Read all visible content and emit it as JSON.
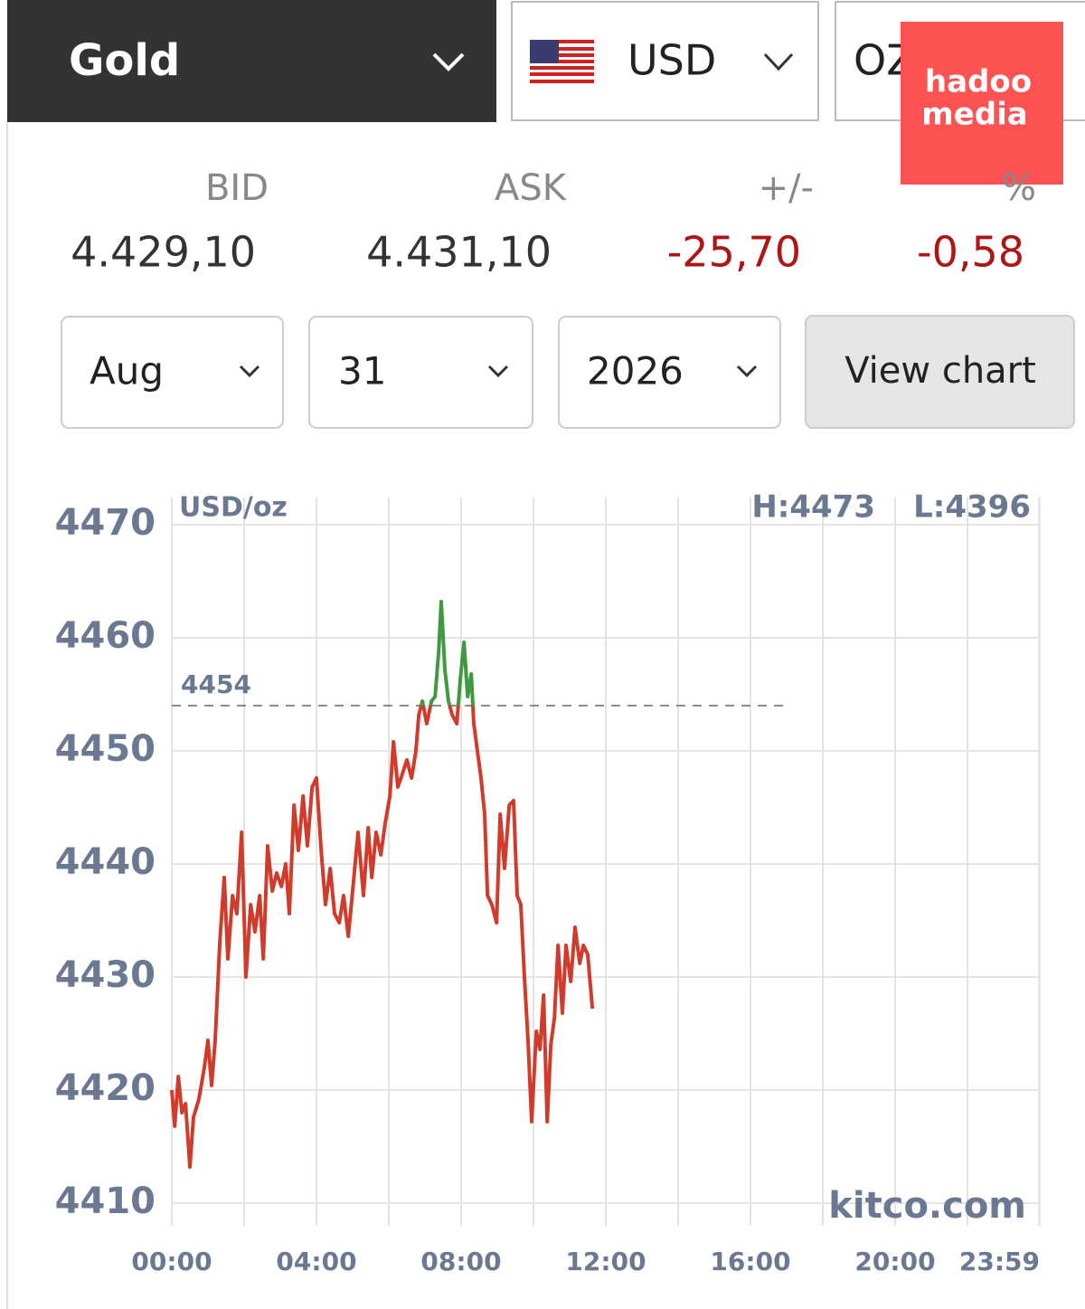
{
  "controls": {
    "metal": "Gold",
    "currency": "USD",
    "unit": "OZ",
    "month": "Aug",
    "day": "31",
    "year": "2026",
    "button": "View chart"
  },
  "quote": {
    "headers": [
      "BID",
      "ASK",
      "+/-",
      "%"
    ],
    "values": [
      "4.429,10",
      "4.431,10",
      "-25,70",
      "-0,58"
    ]
  },
  "watermark": {
    "line1": "hadoo",
    "line2": "media"
  },
  "chart_data": {
    "type": "line",
    "unit_label": "USD/oz",
    "high_label": "H:4473",
    "low_label": "L:4396",
    "source": "kitco.com",
    "reference_line": {
      "value": 4454
    },
    "xlim": [
      0,
      24
    ],
    "xticks": [
      {
        "value": 0,
        "label": "00:00"
      },
      {
        "value": 4,
        "label": "04:00"
      },
      {
        "value": 8,
        "label": "08:00"
      },
      {
        "value": 12,
        "label": "12:00"
      },
      {
        "value": 16,
        "label": "16:00"
      },
      {
        "value": 20,
        "label": "20:00"
      },
      {
        "value": 23.98,
        "label": "23:59"
      }
    ],
    "x_minor_grid": [
      2,
      6,
      10,
      14,
      18,
      22,
      24
    ],
    "ylim": [
      4408,
      4472.4
    ],
    "yticks": [
      4410,
      4420,
      4430,
      4440,
      4450,
      4460,
      4470
    ],
    "grid": true,
    "x": [
      0,
      0.08,
      0.18,
      0.28,
      0.38,
      0.5,
      0.6,
      0.75,
      0.9,
      1.0,
      1.1,
      1.2,
      1.33,
      1.45,
      1.55,
      1.68,
      1.8,
      1.93,
      2.05,
      2.18,
      2.3,
      2.43,
      2.53,
      2.65,
      2.78,
      2.9,
      3.03,
      3.15,
      3.25,
      3.38,
      3.5,
      3.63,
      3.75,
      3.88,
      4.0,
      4.13,
      4.25,
      4.38,
      4.5,
      4.63,
      4.75,
      4.88,
      5.0,
      5.15,
      5.3,
      5.43,
      5.53,
      5.65,
      5.78,
      5.9,
      6.03,
      6.13,
      6.25,
      6.38,
      6.5,
      6.63,
      6.75,
      6.83,
      6.93,
      7.05,
      7.18,
      7.28,
      7.38,
      7.45,
      7.55,
      7.65,
      7.75,
      7.88,
      7.98,
      8.08,
      8.18,
      8.28,
      8.35,
      8.45,
      8.55,
      8.65,
      8.73,
      8.85,
      8.98,
      9.08,
      9.2,
      9.33,
      9.45,
      9.55,
      9.65,
      9.75,
      9.85,
      9.95,
      10.08,
      10.18,
      10.28,
      10.38,
      10.48,
      10.58,
      10.68,
      10.8,
      10.9,
      11.03,
      11.15,
      11.28,
      11.38,
      11.5,
      11.63
    ],
    "series": [
      {
        "color": "#d03b2b",
        "above_color": "#3f9a3f",
        "values": [
          4420,
          4416.8,
          4421.2,
          4418,
          4418.8,
          4413.2,
          4417.6,
          4419.2,
          4422,
          4424.4,
          4420.4,
          4424.4,
          4433.2,
          4438.8,
          4431.6,
          4437.2,
          4435.6,
          4442.8,
          4430,
          4436.4,
          4434,
          4437.2,
          4431.6,
          4441.6,
          4437.6,
          4439.2,
          4438,
          4440,
          4435.6,
          4445.2,
          4441.2,
          4446,
          4441.6,
          4446.8,
          4447.6,
          4441.2,
          4436.4,
          4439.6,
          4435.6,
          4434.8,
          4437.2,
          4433.6,
          4437.6,
          4442.8,
          4437.2,
          4443.2,
          4438.8,
          4442.8,
          4440.8,
          4443.6,
          4446,
          4450.8,
          4446.8,
          4448,
          4449.2,
          4447.6,
          4450,
          4453.2,
          4454.4,
          4452.4,
          4454.4,
          4454.8,
          4458.8,
          4463.2,
          4457.2,
          4454.4,
          4453.2,
          4452.4,
          4456.4,
          4459.6,
          4454.8,
          4456.8,
          4452.4,
          4450,
          4447.6,
          4444.4,
          4437.2,
          4436.4,
          4434.8,
          4444.4,
          4439.6,
          4445.2,
          4445.6,
          4437.2,
          4436.4,
          4430,
          4424.4,
          4417.2,
          4425.2,
          4423.6,
          4428.4,
          4417.2,
          4424,
          4426.4,
          4432.8,
          4426.8,
          4432.8,
          4429.6,
          4434.4,
          4431.2,
          4432.8,
          4432,
          4427.2
        ]
      }
    ]
  }
}
